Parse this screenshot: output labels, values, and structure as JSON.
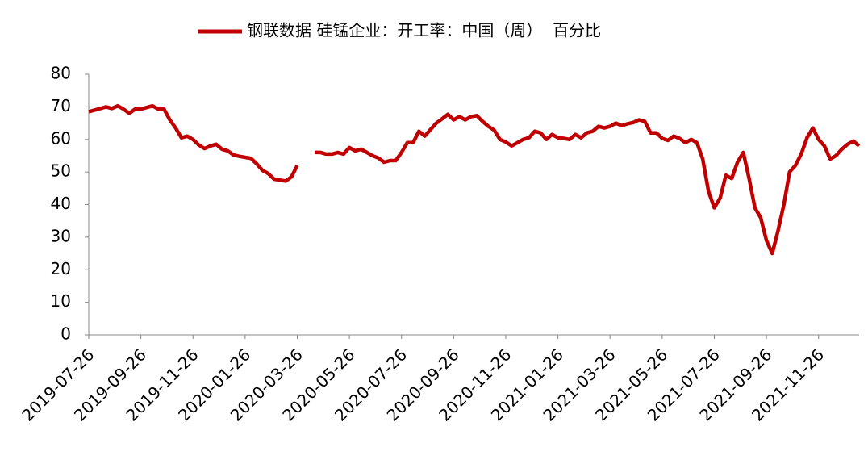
{
  "chart_data": {
    "type": "line",
    "categories": [
      "2019-07-26",
      null,
      null,
      null,
      null,
      null,
      null,
      null,
      null,
      "2019-09-26",
      null,
      null,
      null,
      null,
      null,
      null,
      null,
      null,
      "2019-11-26",
      null,
      null,
      null,
      null,
      null,
      null,
      null,
      null,
      "2020-01-26",
      null,
      null,
      null,
      null,
      null,
      null,
      null,
      null,
      "2020-03-26",
      null,
      null,
      null,
      null,
      null,
      null,
      null,
      null,
      "2020-05-26",
      null,
      null,
      null,
      null,
      null,
      null,
      null,
      null,
      "2020-07-26",
      null,
      null,
      null,
      null,
      null,
      null,
      null,
      null,
      "2020-09-26",
      null,
      null,
      null,
      null,
      null,
      null,
      null,
      null,
      "2020-11-26",
      null,
      null,
      null,
      null,
      null,
      null,
      null,
      null,
      "2021-01-26",
      null,
      null,
      null,
      null,
      null,
      null,
      null,
      null,
      "2021-03-26",
      null,
      null,
      null,
      null,
      null,
      null,
      null,
      null,
      "2021-05-26",
      null,
      null,
      null,
      null,
      null,
      null,
      null,
      null,
      "2021-07-26",
      null,
      null,
      null,
      null,
      null,
      null,
      null,
      null,
      "2021-09-26",
      null,
      null,
      null,
      null,
      null,
      null,
      null,
      null,
      "2021-11-26",
      null,
      null,
      null,
      null,
      null,
      null,
      null
    ],
    "series": [
      {
        "name": "钢联数据 硅锰企业：开工率：中国（周）  百分比",
        "color": "#c00000",
        "values": [
          68.5,
          69,
          69.5,
          70,
          69.5,
          70.3,
          69.3,
          68,
          69.3,
          69.3,
          69.8,
          70.3,
          69.3,
          69.3,
          66,
          63.5,
          60.5,
          61,
          60,
          58.3,
          57.2,
          58,
          58.5,
          57,
          56.5,
          55.2,
          54.8,
          54.5,
          54.2,
          52.5,
          50.5,
          49.5,
          47.8,
          47.5,
          47.2,
          48.5,
          52,
          null,
          null,
          56,
          56,
          55.5,
          55.5,
          56,
          55.5,
          57.5,
          56.5,
          57,
          56,
          55,
          54.3,
          53,
          53.5,
          53.5,
          56,
          59,
          59,
          62.5,
          61,
          63,
          65,
          66.3,
          67.7,
          66,
          67,
          66,
          67,
          67.3,
          65.5,
          64,
          62.8,
          60,
          59.2,
          58,
          59,
          60,
          60.5,
          62.5,
          62,
          60,
          61.5,
          60.5,
          60.3,
          60,
          61.5,
          60.5,
          62,
          62.5,
          64,
          63.5,
          64,
          65,
          64.2,
          64.8,
          65.2,
          66,
          65.5,
          62,
          62,
          60.3,
          59.7,
          61,
          60.3,
          59,
          60,
          59,
          54,
          44,
          39,
          42,
          49,
          48,
          53,
          56,
          48,
          39,
          36,
          29,
          25,
          32,
          40,
          50,
          52,
          55.5,
          60.5,
          63.5,
          60,
          58,
          54,
          55,
          57,
          58.5,
          59.5,
          58
        ]
      }
    ],
    "ylim": [
      0,
      80
    ],
    "yticks": [
      0,
      10,
      20,
      30,
      40,
      50,
      60,
      70,
      80
    ],
    "grid": false,
    "legend": "top"
  }
}
